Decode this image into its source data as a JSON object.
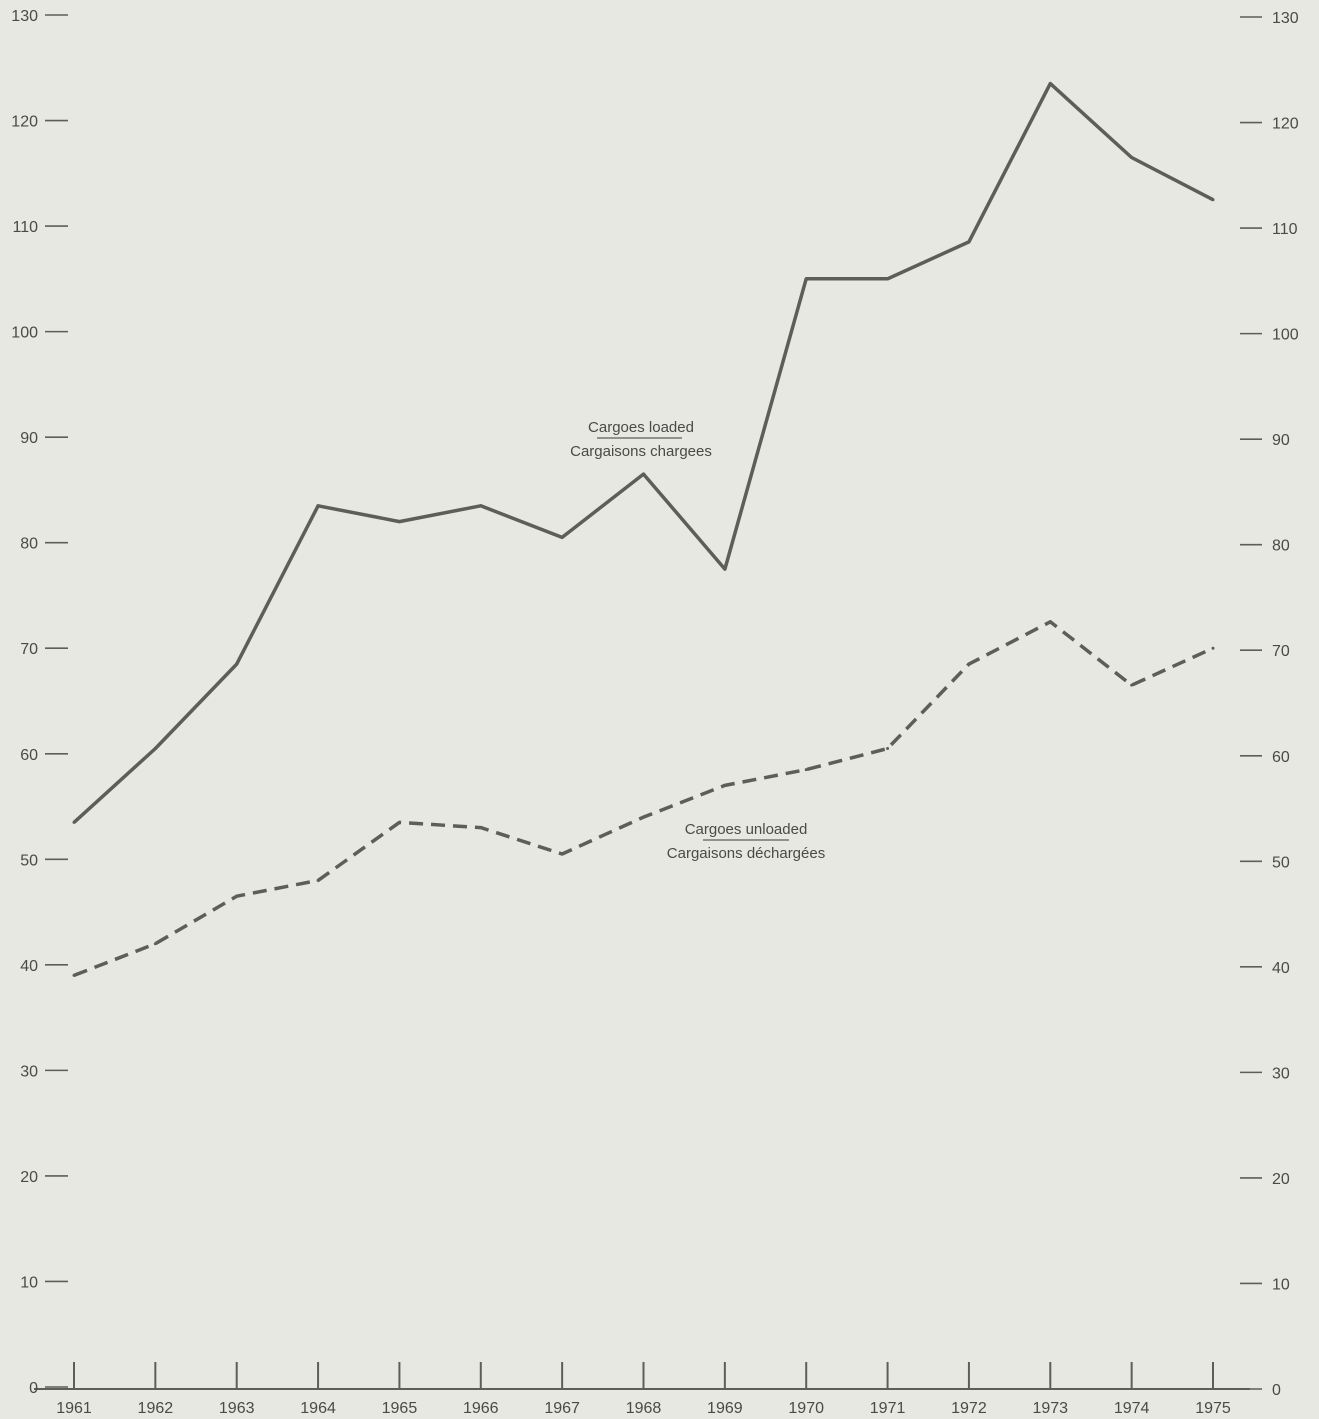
{
  "chart_data": {
    "type": "line",
    "x": [
      1961,
      1962,
      1963,
      1964,
      1965,
      1966,
      1967,
      1968,
      1969,
      1970,
      1971,
      1972,
      1973,
      1974,
      1975
    ],
    "x_tick_labels": [
      "1961",
      "1962",
      "1963",
      "1964",
      "1965",
      "1966",
      "1967",
      "1968",
      "1969",
      "1970",
      "1971",
      "1972",
      "1973",
      "1974",
      "1975"
    ],
    "ylim": [
      0,
      130
    ],
    "y_ticks": [
      0,
      10,
      20,
      30,
      40,
      50,
      60,
      70,
      80,
      90,
      100,
      110,
      120,
      130
    ],
    "y_tick_labels_left": [
      "0",
      "10",
      "20",
      "30",
      "40",
      "50",
      "60",
      "70",
      "80",
      "90",
      "100",
      "110",
      "120",
      "130"
    ],
    "y_tick_labels_right": [
      "0",
      "10",
      "20",
      "30",
      "40",
      "50",
      "60",
      "70",
      "80",
      "90",
      "100",
      "110",
      "120",
      "130"
    ],
    "grid": false,
    "series": [
      {
        "name_line1": "Cargoes loaded",
        "name_line2": "Cargaisons chargees",
        "style": "solid",
        "color": "#5e5e58",
        "values": [
          53.5,
          60.5,
          68.5,
          83.5,
          82,
          83.5,
          80.5,
          86.5,
          77.5,
          105,
          105,
          108.5,
          123.5,
          116.5,
          112.5
        ]
      },
      {
        "name_line1": "Cargoes unloaded",
        "name_line2": "Cargaisons déchargées",
        "style": "dashed",
        "color": "#5e5e58",
        "values": [
          39,
          42,
          46.5,
          48,
          53.5,
          53,
          50.5,
          54,
          57,
          58.5,
          60.5,
          68.5,
          72.5,
          66.5,
          70
        ]
      }
    ]
  }
}
